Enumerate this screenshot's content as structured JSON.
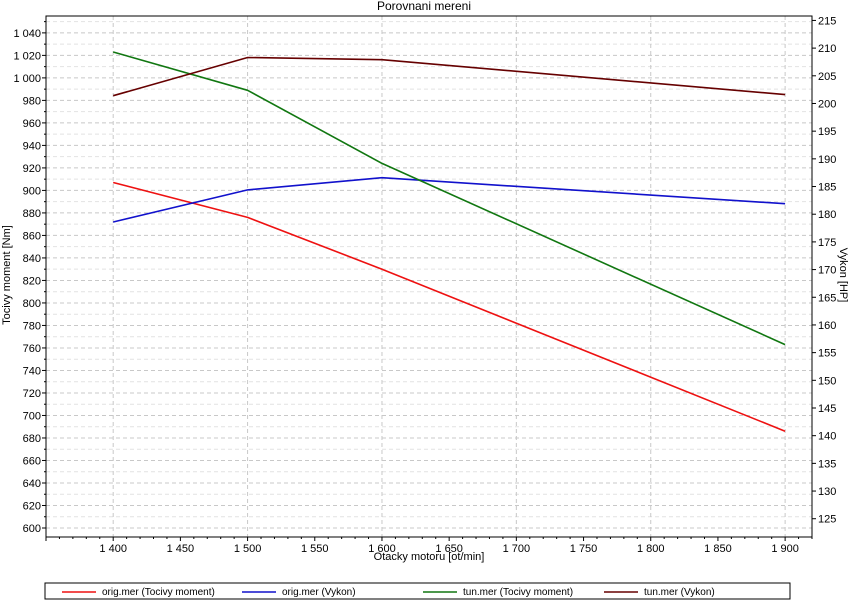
{
  "chart_data": {
    "type": "line",
    "title": "Porovnani mereni",
    "xlabel": "Otacky motoru [ot/min]",
    "ylabel_left": "Tocivy moment [Nm]",
    "ylabel_right": "Vykon [HP]",
    "xlim": [
      1350,
      1920
    ],
    "ylim_left": [
      592,
      1055
    ],
    "ylim_right": [
      121.7,
      215.8
    ],
    "grid": true,
    "legend_position": "bottom",
    "x_ticks": [
      1400,
      1450,
      1500,
      1550,
      1600,
      1650,
      1700,
      1750,
      1800,
      1850,
      1900
    ],
    "x_tick_labels": [
      "1 400",
      "1 450",
      "1 500",
      "1 550",
      "1 600",
      "1 650",
      "1 700",
      "1 750",
      "1 800",
      "1 850",
      "1 900"
    ],
    "y_left_ticks": [
      600,
      620,
      640,
      660,
      680,
      700,
      720,
      740,
      760,
      780,
      800,
      820,
      840,
      860,
      880,
      900,
      920,
      940,
      960,
      980,
      1000,
      1020,
      1040
    ],
    "y_left_tick_labels": [
      "600",
      "620",
      "640",
      "660",
      "680",
      "700",
      "720",
      "740",
      "760",
      "780",
      "800",
      "820",
      "840",
      "860",
      "880",
      "900",
      "920",
      "940",
      "960",
      "980",
      "1 000",
      "1 020",
      "1 040"
    ],
    "y_right_ticks": [
      125,
      130,
      135,
      140,
      145,
      150,
      155,
      160,
      165,
      170,
      175,
      180,
      185,
      190,
      195,
      200,
      205,
      210,
      215
    ],
    "y_right_tick_labels": [
      "125",
      "130",
      "135",
      "140",
      "145",
      "150",
      "155",
      "160",
      "165",
      "170",
      "175",
      "180",
      "185",
      "190",
      "195",
      "200",
      "205",
      "210",
      "215"
    ],
    "series": [
      {
        "name": "orig.mer  (Tocivy moment)",
        "axis": "left",
        "color": "#ee1111",
        "x": [
          1400,
          1500,
          1600,
          1900
        ],
        "values": [
          907,
          876,
          830,
          686
        ]
      },
      {
        "name": "orig.mer  (Vykon)",
        "axis": "right",
        "color": "#1111cc",
        "x": [
          1400,
          1500,
          1600,
          1900
        ],
        "values": [
          178.6,
          184.4,
          186.6,
          181.9
        ]
      },
      {
        "name": "tun.mer  (Tocivy moment)",
        "axis": "left",
        "color": "#117711",
        "x": [
          1400,
          1500,
          1600,
          1900
        ],
        "values": [
          1023,
          989,
          924,
          763
        ]
      },
      {
        "name": "tun.mer  (Vykon)",
        "axis": "right",
        "color": "#660000",
        "x": [
          1400,
          1500,
          1600,
          1900
        ],
        "values": [
          201.4,
          208.3,
          207.9,
          201.6
        ]
      }
    ]
  }
}
